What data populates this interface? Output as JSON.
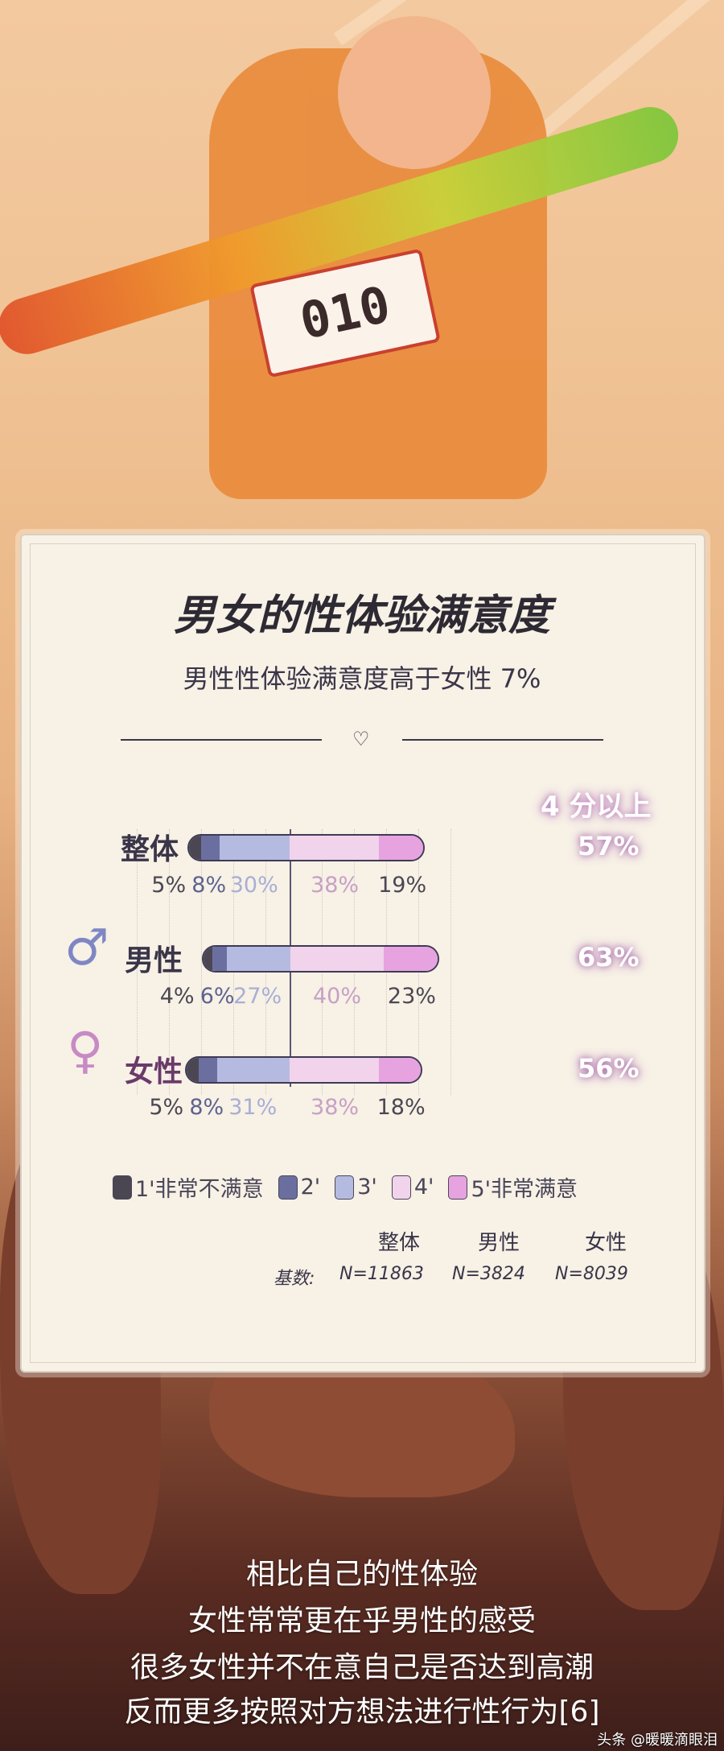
{
  "illustration": {
    "bib_number": "010"
  },
  "card": {
    "title": "男女的性体验满意度",
    "subtitle": "男性性体验满意度高于女性 7%",
    "over4_header": "4 分以上"
  },
  "chart_data": {
    "type": "bar",
    "stacked": true,
    "diverging": true,
    "title": "男女的性体验满意度",
    "subtitle": "男性性体验满意度高于女性 7%",
    "categories": [
      "整体",
      "男性",
      "女性"
    ],
    "series": [
      {
        "name": "1'非常不满意",
        "values": [
          5,
          4,
          5
        ],
        "color": "#4b4752"
      },
      {
        "name": "2'",
        "values": [
          8,
          6,
          8
        ],
        "color": "#6b6fa0"
      },
      {
        "name": "3'",
        "values": [
          30,
          27,
          31
        ],
        "color": "#b5bbe0"
      },
      {
        "name": "4'",
        "values": [
          38,
          40,
          38
        ],
        "color": "#f1d3ec"
      },
      {
        "name": "5'非常满意",
        "values": [
          19,
          23,
          18
        ],
        "color": "#e6a3df"
      }
    ],
    "labels": [
      [
        "5%",
        "8%",
        "30%",
        "38%",
        "19%"
      ],
      [
        "4%",
        "6%",
        "27%",
        "40%",
        "23%"
      ],
      [
        "5%",
        "8%",
        "31%",
        "38%",
        "18%"
      ]
    ],
    "over4_header": "4 分以上",
    "over4": [
      "57%",
      "63%",
      "56%"
    ],
    "legend_position": "bottom",
    "base": {
      "label": "基数:",
      "groups": [
        "整体",
        "男性",
        "女性"
      ],
      "n": [
        "N=11863",
        "N=3824",
        "N=8039"
      ]
    }
  },
  "bottom_text": [
    "相比自己的性体验",
    "女性常常更在乎男性的感受",
    "很多女性并不在意自己是否达到高潮",
    "反而更多按照对方想法进行性行为[6]"
  ],
  "watermark": "头条 @暖暖滴眼泪"
}
